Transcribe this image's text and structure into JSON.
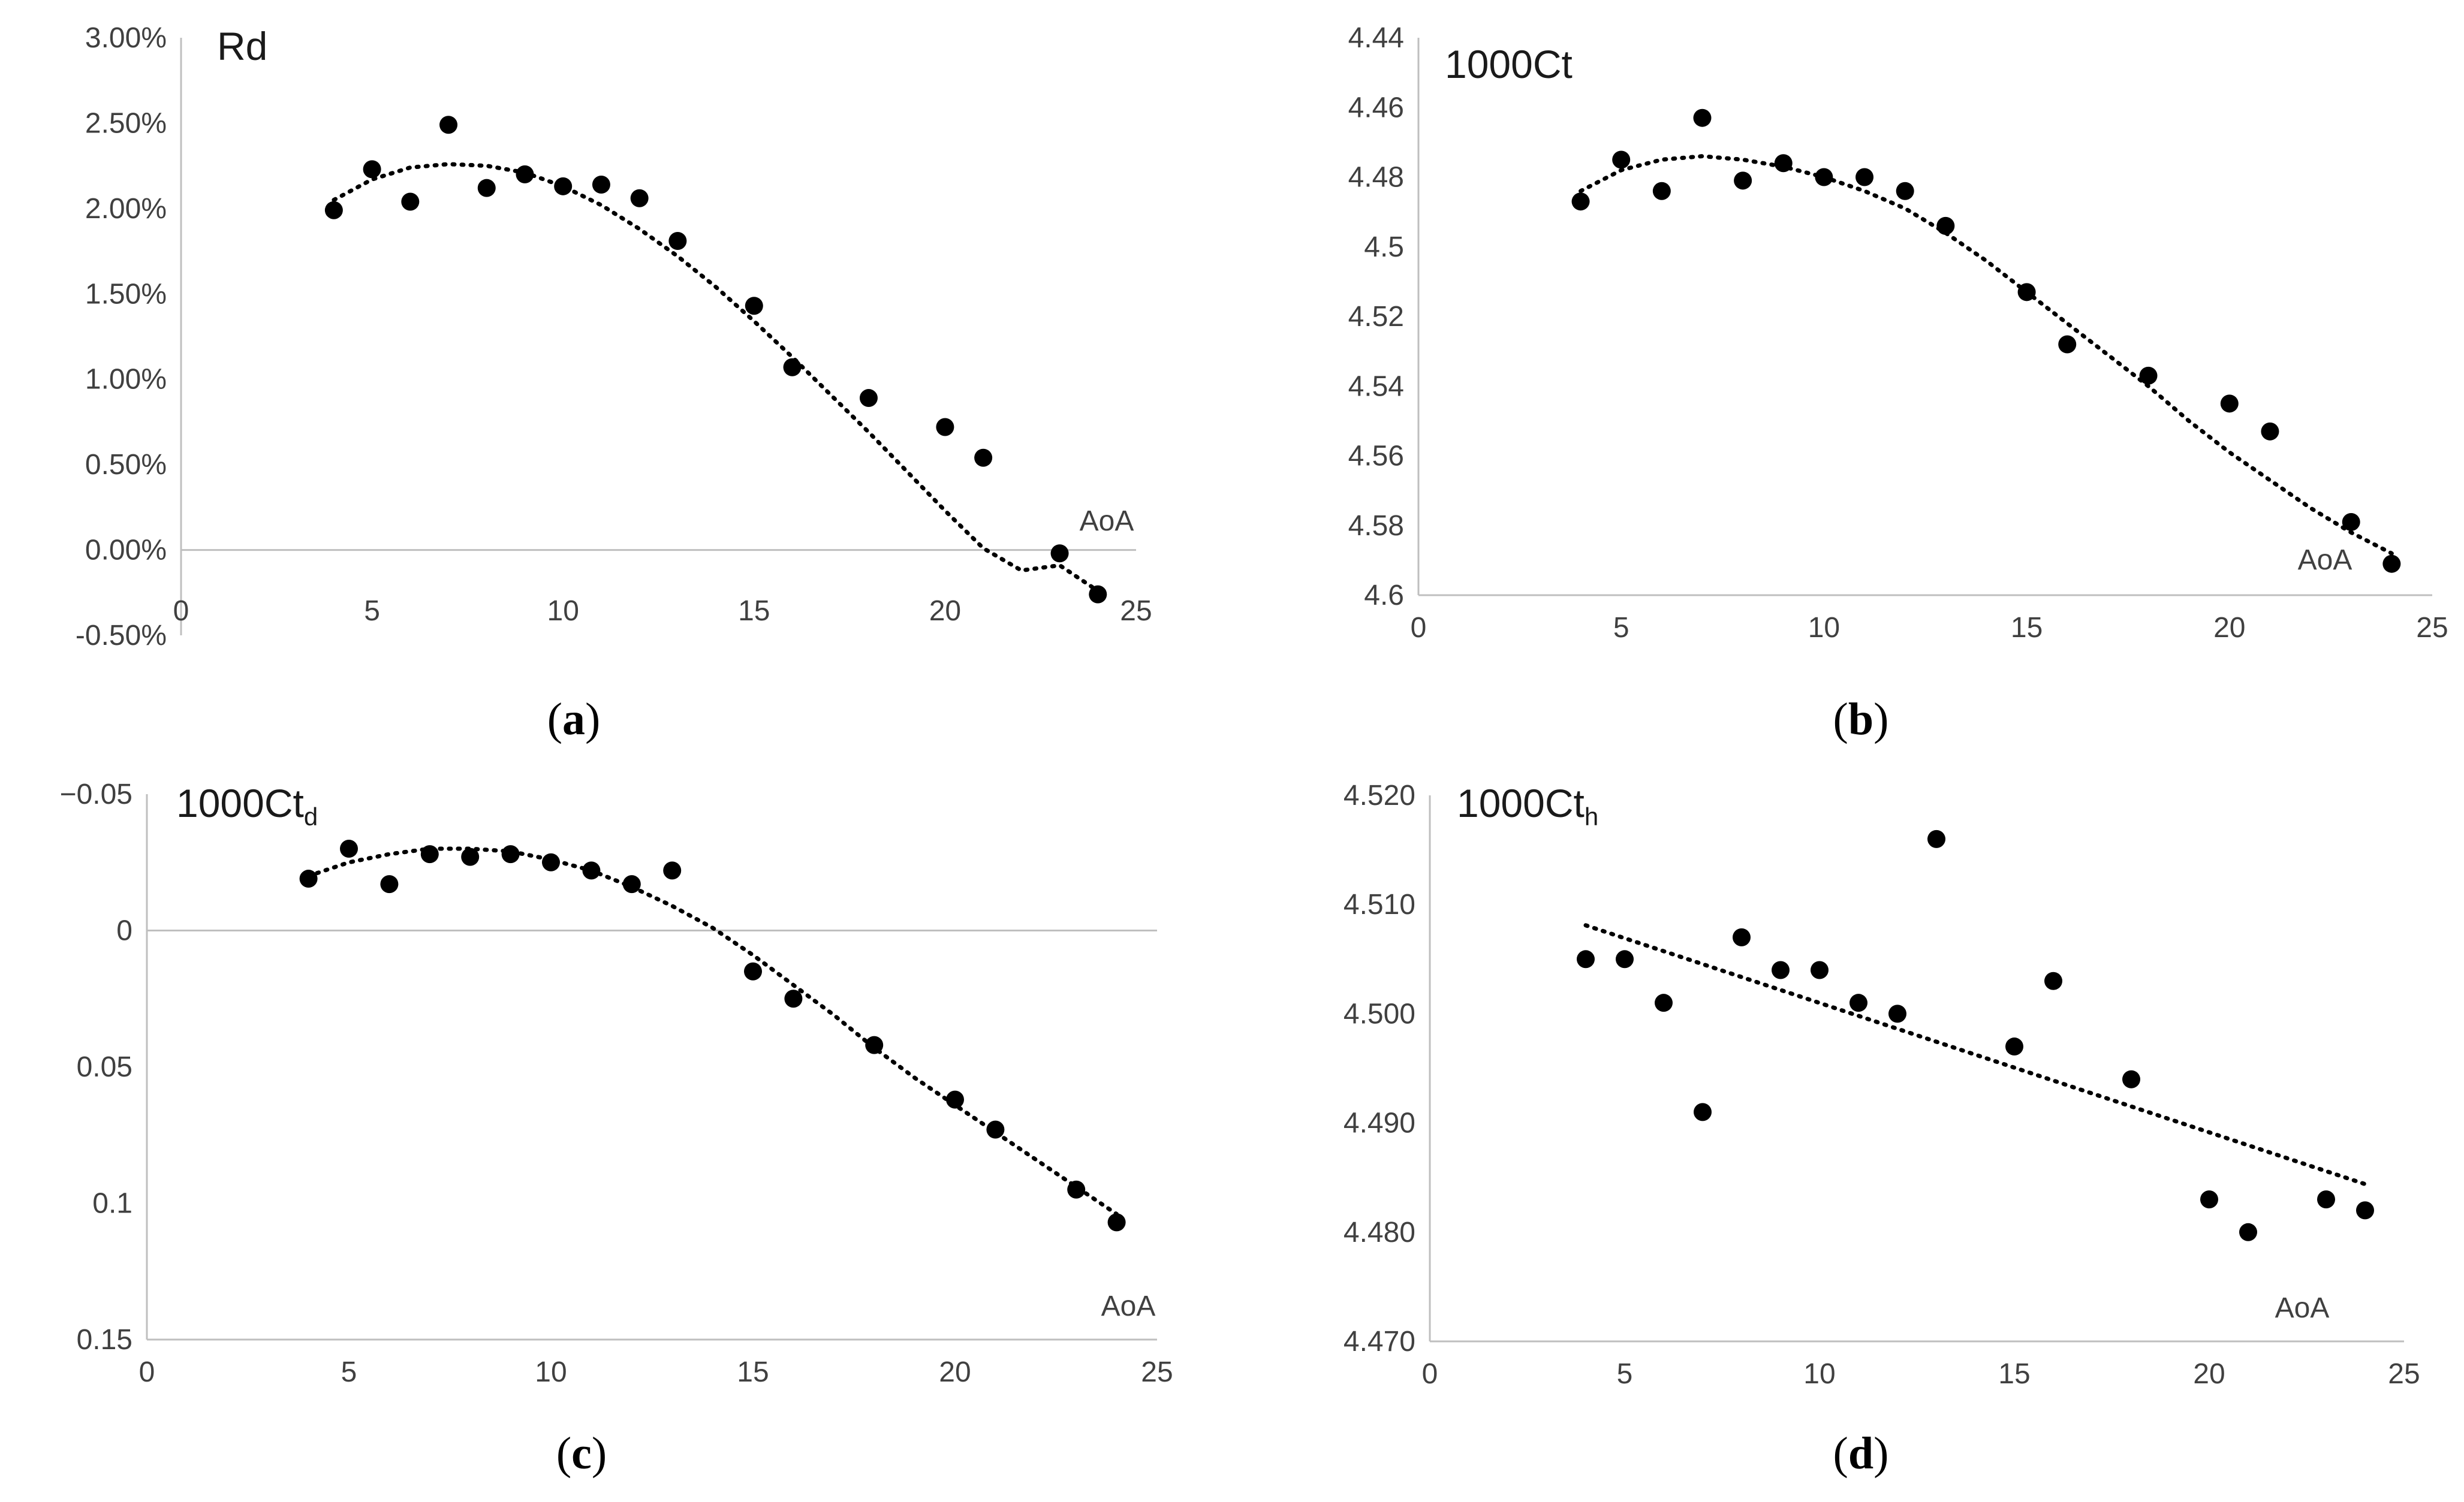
{
  "chart_data": [
    {
      "panel": "a",
      "type": "scatter",
      "caption_letter": "a",
      "ylabel": "Rd",
      "xlabel": "AoA",
      "xlim": [
        0,
        25
      ],
      "ylim": [
        -0.005,
        0.03
      ],
      "x_ticks": [
        0,
        5,
        10,
        15,
        20,
        25
      ],
      "y_ticks": [
        0.03,
        0.025,
        0.02,
        0.015,
        0.01,
        0.005,
        0.0,
        -0.005
      ],
      "y_tick_labels": [
        "3.00%",
        "2.50%",
        "2.00%",
        "1.50%",
        "1.00%",
        "0.50%",
        "0.00%",
        "-0.50%"
      ],
      "y_inverted": false,
      "x": [
        4,
        5,
        6,
        7,
        8,
        9,
        10,
        11,
        12,
        13,
        15,
        16,
        18,
        20,
        21,
        23,
        24
      ],
      "y": [
        0.0199,
        0.0223,
        0.0204,
        0.0249,
        0.0212,
        0.022,
        0.0213,
        0.0214,
        0.0206,
        0.0181,
        0.0143,
        0.0107,
        0.0089,
        0.0072,
        0.0054,
        -0.0002,
        -0.0026
      ],
      "trendline": {
        "style": "dotted",
        "x": [
          4,
          5,
          6,
          7,
          8,
          9,
          10,
          11,
          12,
          13,
          14,
          15,
          16,
          17,
          18,
          19,
          20,
          21,
          22,
          23,
          24
        ],
        "y": [
          0.0205,
          0.0217,
          0.0224,
          0.0226,
          0.0225,
          0.0221,
          0.0213,
          0.0202,
          0.0188,
          0.0172,
          0.0154,
          0.0134,
          0.0113,
          0.0091,
          0.0069,
          0.0046,
          0.0023,
          0.0001,
          -0.0012,
          -0.0009,
          -0.0024
        ]
      }
    },
    {
      "panel": "b",
      "type": "scatter",
      "caption_letter": "b",
      "ylabel": "1000Ct",
      "xlabel": "AoA",
      "xlim": [
        0,
        25
      ],
      "ylim": [
        4.44,
        4.6
      ],
      "x_ticks": [
        0,
        5,
        10,
        15,
        20,
        25
      ],
      "y_ticks": [
        4.44,
        4.46,
        4.48,
        4.5,
        4.52,
        4.54,
        4.56,
        4.58,
        4.6
      ],
      "y_tick_labels": [
        "4.44",
        "4.46",
        "4.48",
        "4.5",
        "4.52",
        "4.54",
        "4.56",
        "4.58",
        "4.6"
      ],
      "y_inverted": true,
      "x": [
        4,
        5,
        6,
        7,
        8,
        9,
        10,
        11,
        12,
        13,
        15,
        16,
        18,
        20,
        21,
        23,
        24
      ],
      "y": [
        4.487,
        4.475,
        4.484,
        4.463,
        4.481,
        4.476,
        4.48,
        4.48,
        4.484,
        4.494,
        4.513,
        4.528,
        4.537,
        4.545,
        4.553,
        4.579,
        4.591
      ],
      "trendline": {
        "style": "dotted",
        "x": [
          4,
          5,
          6,
          7,
          8,
          9,
          10,
          11,
          12,
          13,
          14,
          15,
          16,
          17,
          18,
          19,
          20,
          21,
          22,
          23,
          24
        ],
        "y": [
          4.484,
          4.478,
          4.475,
          4.474,
          4.475,
          4.477,
          4.48,
          4.484,
          4.489,
          4.496,
          4.504,
          4.513,
          4.522,
          4.531,
          4.54,
          4.55,
          4.559,
          4.567,
          4.575,
          4.582,
          4.588
        ]
      }
    },
    {
      "panel": "c",
      "type": "scatter",
      "caption_letter": "c",
      "ylabel": "1000Ct",
      "ylabel_subscript": "d",
      "xlabel": "AoA",
      "xlim": [
        0,
        25
      ],
      "ylim": [
        -0.05,
        0.15
      ],
      "x_ticks": [
        0,
        5,
        10,
        15,
        20,
        25
      ],
      "y_ticks": [
        -0.05,
        0,
        0.05,
        0.1,
        0.15
      ],
      "y_tick_labels": [
        "−0.05",
        "0",
        "0.05",
        "0.1",
        "0.15"
      ],
      "y_inverted": true,
      "x": [
        4,
        5,
        6,
        7,
        8,
        9,
        10,
        11,
        12,
        13,
        15,
        16,
        18,
        20,
        21,
        23,
        24
      ],
      "y": [
        -0.019,
        -0.03,
        -0.017,
        -0.028,
        -0.027,
        -0.028,
        -0.025,
        -0.022,
        -0.017,
        -0.022,
        0.015,
        0.025,
        0.042,
        0.062,
        0.073,
        0.095,
        0.107
      ],
      "trendline": {
        "style": "dotted",
        "x": [
          4,
          5,
          6,
          7,
          8,
          9,
          10,
          11,
          12,
          13,
          14,
          15,
          16,
          17,
          18,
          19,
          20,
          21,
          22,
          23,
          24
        ],
        "y": [
          -0.02,
          -0.025,
          -0.028,
          -0.03,
          -0.03,
          -0.029,
          -0.026,
          -0.022,
          -0.016,
          -0.009,
          -0.001,
          0.009,
          0.02,
          0.031,
          0.043,
          0.054,
          0.064,
          0.074,
          0.084,
          0.094,
          0.104
        ]
      }
    },
    {
      "panel": "d",
      "type": "scatter",
      "caption_letter": "d",
      "ylabel": "1000Ct",
      "ylabel_subscript": "h",
      "xlabel": "AoA",
      "xlim": [
        0,
        25
      ],
      "ylim": [
        4.47,
        4.52
      ],
      "x_ticks": [
        0,
        5,
        10,
        15,
        20,
        25
      ],
      "y_ticks": [
        4.52,
        4.51,
        4.5,
        4.49,
        4.48,
        4.47
      ],
      "y_tick_labels": [
        "4.520",
        "4.510",
        "4.500",
        "4.490",
        "4.480",
        "4.470"
      ],
      "y_inverted": false,
      "x": [
        4,
        5,
        6,
        7,
        8,
        9,
        10,
        11,
        12,
        13,
        15,
        16,
        18,
        20,
        21,
        23,
        24
      ],
      "y": [
        4.505,
        4.505,
        4.501,
        4.491,
        4.507,
        4.504,
        4.504,
        4.501,
        4.5,
        4.516,
        4.497,
        4.503,
        4.494,
        4.483,
        4.48,
        4.483,
        4.482
      ],
      "trendline": {
        "style": "dotted",
        "x": [
          4,
          24
        ],
        "y": [
          4.5081,
          4.4844
        ]
      }
    }
  ]
}
